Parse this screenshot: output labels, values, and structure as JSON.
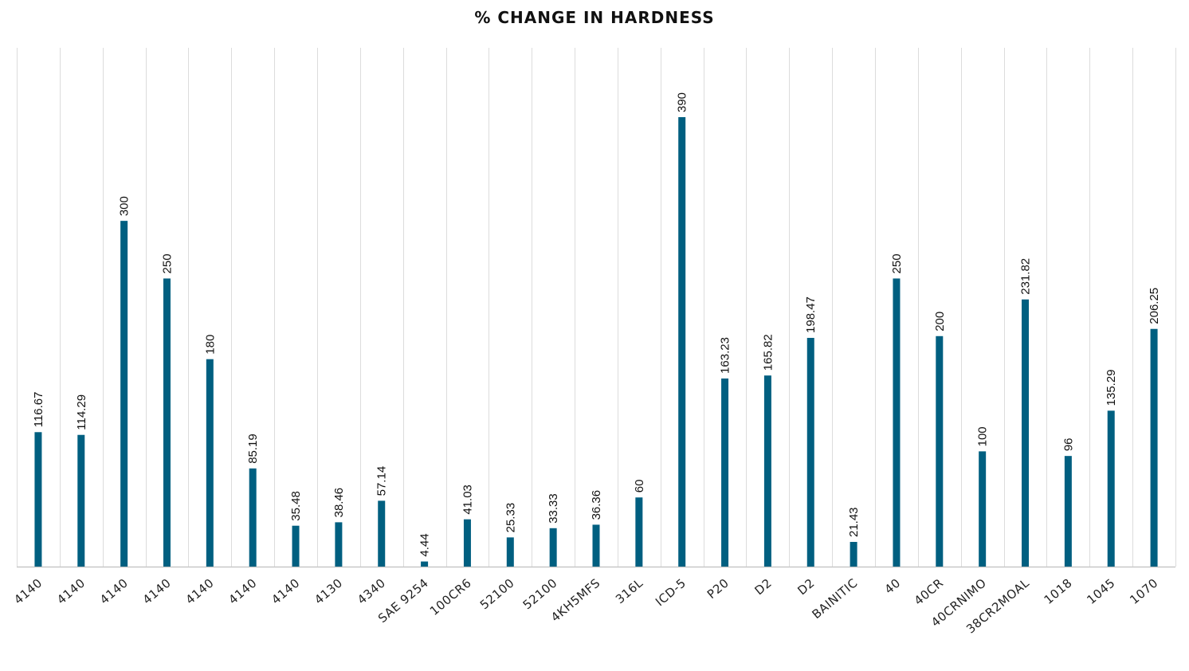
{
  "chart_data": {
    "type": "bar",
    "title": "% CHANGE IN HARDNESS",
    "xlabel": "",
    "ylabel": "",
    "ylim": [
      0,
      420
    ],
    "grid": "vertical",
    "legend": "none",
    "bar_color": "#005f80",
    "categories": [
      "4140",
      "4140",
      "4140",
      "4140",
      "4140",
      "4140",
      "4140",
      "4130",
      "4340",
      "SAE 9254",
      "100CR6",
      "52100",
      "52100",
      "4KH5MFS",
      "316L",
      "ICD-5",
      "P20",
      "D2",
      "D2",
      "BAINITIC",
      "40",
      "40CR",
      "40CRNIMO",
      "38CR2MOAL",
      "1018",
      "1045",
      "1070"
    ],
    "values": [
      116.67,
      114.29,
      300,
      250,
      180,
      85.19,
      35.48,
      38.46,
      57.14,
      4.44,
      41.03,
      25.33,
      33.33,
      36.36,
      60,
      390,
      163.23,
      165.82,
      198.47,
      21.43,
      250,
      200,
      100,
      231.82,
      96,
      135.29,
      206.25
    ],
    "value_labels": [
      "116.67",
      "114.29",
      "300",
      "250",
      "180",
      "85.19",
      "35.48",
      "38.46",
      "57.14",
      "4.44",
      "41.03",
      "25.33",
      "33.33",
      "36.36",
      "60",
      "390",
      "163.23",
      "165.82",
      "198.47",
      "21.43",
      "250",
      "200",
      "100",
      "231.82",
      "96",
      "135.29",
      "206.25"
    ]
  }
}
